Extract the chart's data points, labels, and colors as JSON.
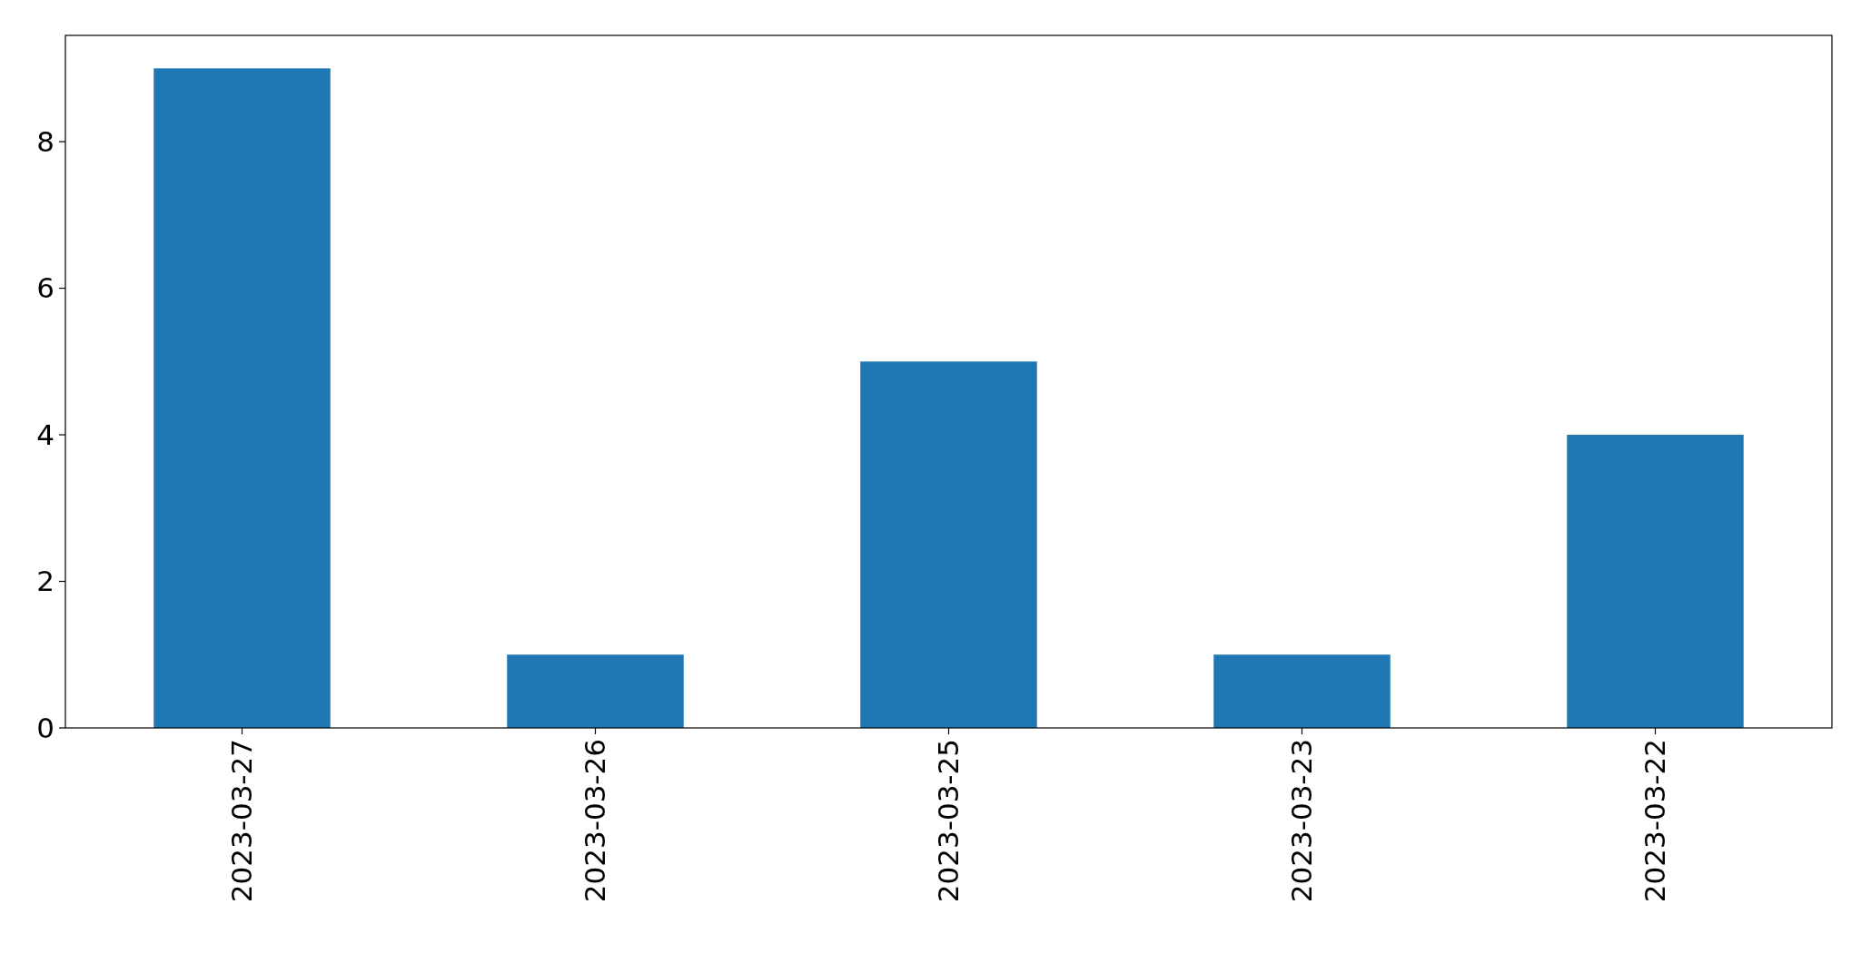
{
  "chart_data": {
    "type": "bar",
    "categories": [
      "2023-03-27",
      "2023-03-26",
      "2023-03-25",
      "2023-03-23",
      "2023-03-22"
    ],
    "values": [
      9,
      1,
      5,
      1,
      4
    ],
    "color": "#1f77b4",
    "ylim": [
      0,
      9.45
    ],
    "yticks": [
      0,
      2,
      4,
      6,
      8
    ]
  }
}
